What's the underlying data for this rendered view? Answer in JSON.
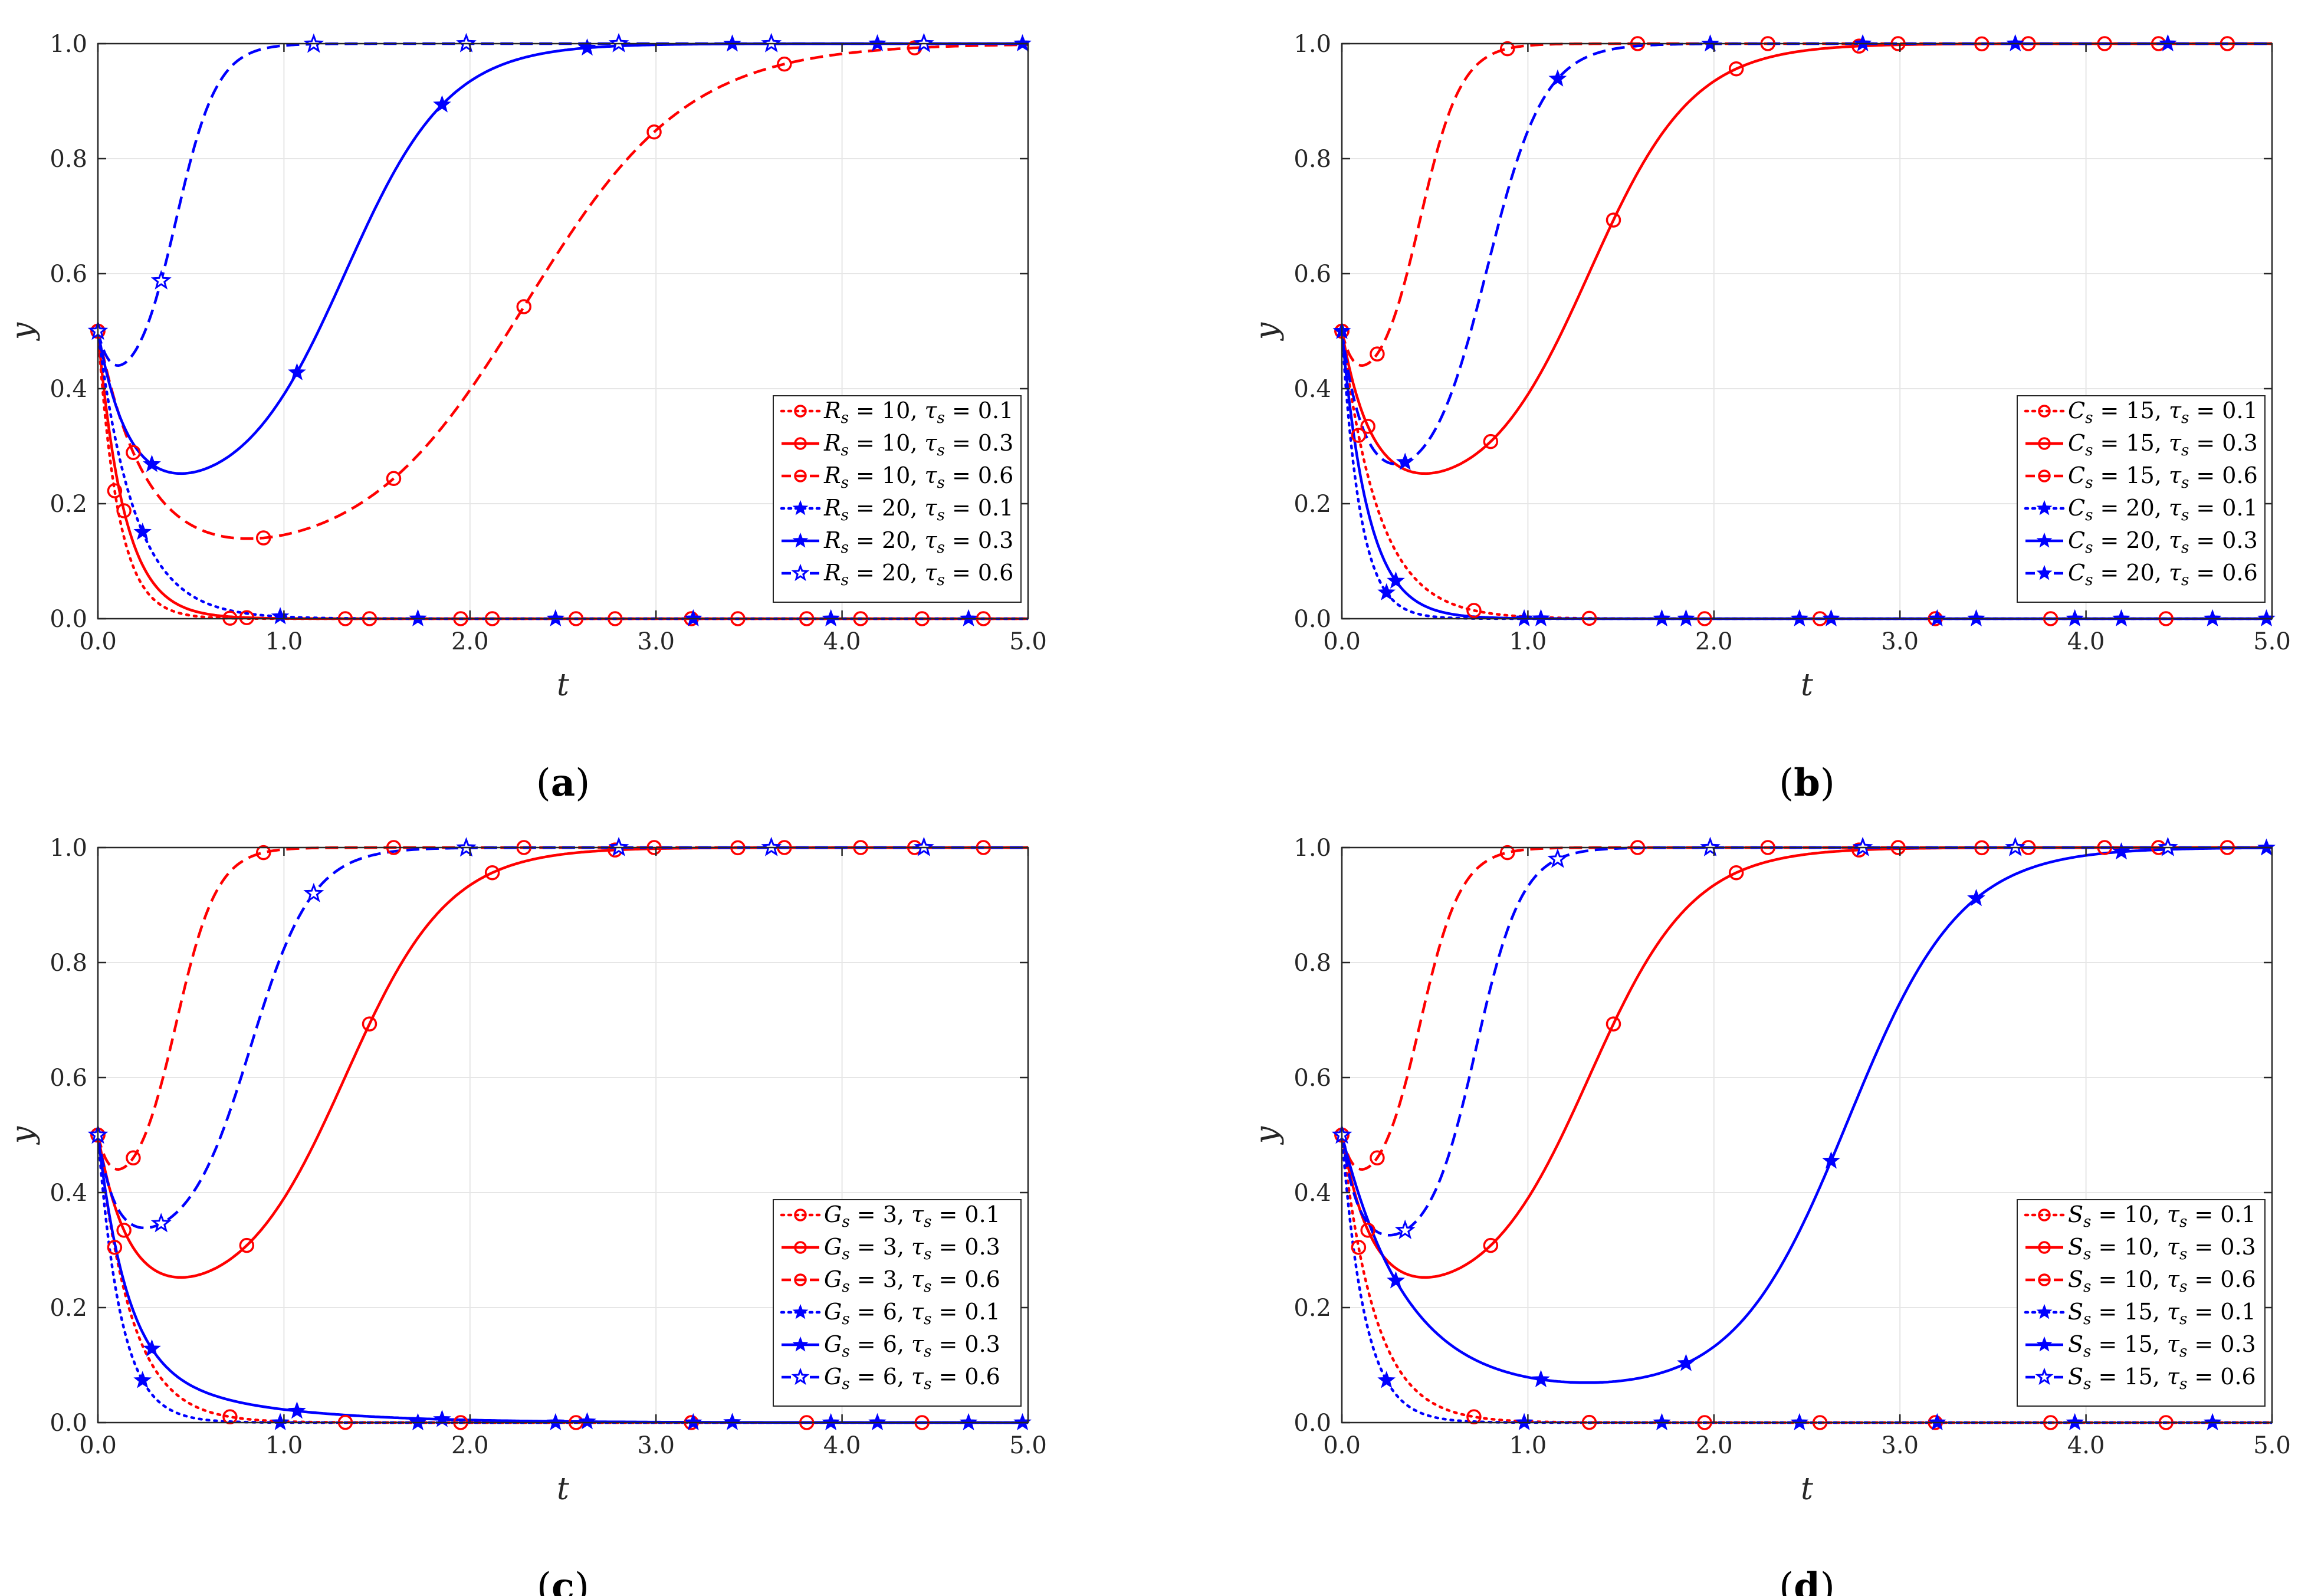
{
  "chart_data": [
    {
      "type": "line",
      "panel": "(a)",
      "panel_label": "(a)",
      "xlabel": "t",
      "ylabel": "y",
      "xlim": [
        0,
        5
      ],
      "ylim": [
        0,
        1
      ],
      "xticks": [
        "0.0",
        "1.0",
        "2.0",
        "3.0",
        "4.0",
        "5.0"
      ],
      "yticks": [
        "0.0",
        "0.2",
        "0.4",
        "0.6",
        "0.8",
        "1.0"
      ],
      "grid": true,
      "legend_position": "lower-right",
      "series": [
        {
          "name": "R_s = 10, τ_s = 0.1",
          "label_main": "R",
          "label_sub": "s",
          "label_value": "= 10, ",
          "label_tau": "τ",
          "label_tau_sub": "s",
          "label_tau_value": "= 0.1",
          "color": "#ff0000",
          "dash": "dotted",
          "marker": "circle",
          "y0": 0.5,
          "shape": "decay",
          "k": 9.0,
          "t_max": 5
        },
        {
          "name": "R_s = 10, τ_s = 0.3",
          "label_main": "R",
          "label_sub": "s",
          "label_value": "= 10, ",
          "label_tau": "τ",
          "label_tau_sub": "s",
          "label_tau_value": "= 0.3",
          "color": "#ff0000",
          "dash": "solid",
          "marker": "circle",
          "y0": 0.5,
          "shape": "decay",
          "k": 7.0,
          "t_max": 5
        },
        {
          "name": "R_s = 10, τ_s = 0.6",
          "label_main": "R",
          "label_sub": "s",
          "label_value": "= 10, ",
          "label_tau": "τ",
          "label_tau_sub": "s",
          "label_tau_value": "= 0.6",
          "color": "#ff0000",
          "dash": "dashed",
          "marker": "circle",
          "y0": 0.5,
          "shape": "dip",
          "min_t": 0.75,
          "min_y": 0.1,
          "mid": 2.3,
          "steep": 2.3,
          "t_max": 5
        },
        {
          "name": "R_s = 20, τ_s = 0.1",
          "label_main": "R",
          "label_sub": "s",
          "label_value": "= 20, ",
          "label_tau": "τ",
          "label_tau_sub": "s",
          "label_tau_value": "= 0.1",
          "color": "#0000ff",
          "dash": "dotted",
          "marker": "star",
          "y0": 0.5,
          "shape": "decay",
          "k": 5.0,
          "t_max": 5
        },
        {
          "name": "R_s = 20, τ_s = 0.3",
          "label_main": "R",
          "label_sub": "s",
          "label_value": "= 20, ",
          "label_tau": "τ",
          "label_tau_sub": "s",
          "label_tau_value": "= 0.3",
          "color": "#0000ff",
          "dash": "solid",
          "marker": "star",
          "y0": 0.5,
          "shape": "dip",
          "min_t": 0.48,
          "min_y": 0.21,
          "mid": 1.33,
          "steep": 3.6,
          "t_max": 5
        },
        {
          "name": "R_s = 20, τ_s = 0.6",
          "label_main": "R",
          "label_sub": "s",
          "label_value": "= 20, ",
          "label_tau": "τ",
          "label_tau_sub": "s",
          "label_tau_value": "= 0.6",
          "color": "#0000ff",
          "dash": "dashed",
          "marker": "star-open",
          "y0": 0.5,
          "shape": "dip",
          "min_t": 0.2,
          "min_y": 0.4,
          "mid": 0.42,
          "steep": 9.0,
          "t_max": 5
        }
      ]
    },
    {
      "type": "line",
      "panel": "(b)",
      "panel_label": "(b)",
      "xlabel": "t",
      "ylabel": "y",
      "xlim": [
        0,
        5
      ],
      "ylim": [
        0,
        1
      ],
      "xticks": [
        "0.0",
        "1.0",
        "2.0",
        "3.0",
        "4.0",
        "5.0"
      ],
      "yticks": [
        "0.0",
        "0.2",
        "0.4",
        "0.6",
        "0.8",
        "1.0"
      ],
      "grid": true,
      "legend_position": "lower-right",
      "series": [
        {
          "name": "C_s = 15, τ_s = 0.1",
          "label_main": "C",
          "label_sub": "s",
          "label_value": "= 15, ",
          "label_tau": "τ",
          "label_tau_sub": "s",
          "label_tau_value": "= 0.1",
          "color": "#ff0000",
          "dash": "dotted",
          "marker": "circle",
          "y0": 0.5,
          "shape": "decay",
          "k": 5.0,
          "t_max": 5
        },
        {
          "name": "C_s = 15, τ_s = 0.3",
          "label_main": "C",
          "label_sub": "s",
          "label_value": "= 15, ",
          "label_tau": "τ",
          "label_tau_sub": "s",
          "label_tau_value": "= 0.3",
          "color": "#ff0000",
          "dash": "solid",
          "marker": "circle",
          "y0": 0.5,
          "shape": "dip",
          "min_t": 0.48,
          "min_y": 0.21,
          "mid": 1.33,
          "steep": 3.6,
          "t_max": 5
        },
        {
          "name": "C_s = 15, τ_s = 0.6",
          "label_main": "C",
          "label_sub": "s",
          "label_value": "= 15, ",
          "label_tau": "τ",
          "label_tau_sub": "s",
          "label_tau_value": "= 0.6",
          "color": "#ff0000",
          "dash": "dashed",
          "marker": "circle",
          "y0": 0.5,
          "shape": "dip",
          "min_t": 0.2,
          "min_y": 0.4,
          "mid": 0.42,
          "steep": 9.0,
          "t_max": 5
        },
        {
          "name": "C_s = 20, τ_s = 0.1",
          "label_main": "C",
          "label_sub": "s",
          "label_value": "= 20, ",
          "label_tau": "τ",
          "label_tau_sub": "s",
          "label_tau_value": "= 0.1",
          "color": "#0000ff",
          "dash": "dotted",
          "marker": "star",
          "y0": 0.5,
          "shape": "decay",
          "k": 10.0,
          "t_max": 5
        },
        {
          "name": "C_s = 20, τ_s = 0.3",
          "label_main": "C",
          "label_sub": "s",
          "label_value": "= 20, ",
          "label_tau": "τ",
          "label_tau_sub": "s",
          "label_tau_value": "= 0.3",
          "color": "#0000ff",
          "dash": "solid",
          "marker": "star",
          "y0": 0.5,
          "shape": "decay",
          "k": 7.0,
          "t_max": 5
        },
        {
          "name": "C_s = 20, τ_s = 0.6",
          "label_main": "C",
          "label_sub": "s",
          "label_value": "= 20, ",
          "label_tau": "τ",
          "label_tau_sub": "s",
          "label_tau_value": "= 0.6",
          "color": "#0000ff",
          "dash": "dashed",
          "marker": "star",
          "y0": 0.5,
          "shape": "dip",
          "min_t": 0.35,
          "min_y": 0.22,
          "mid": 0.78,
          "steep": 6.5,
          "t_max": 5
        }
      ]
    },
    {
      "type": "line",
      "panel": "(c)",
      "panel_label": "(c)",
      "xlabel": "t",
      "ylabel": "y",
      "xlim": [
        0,
        5
      ],
      "ylim": [
        0,
        1
      ],
      "xticks": [
        "0.0",
        "1.0",
        "2.0",
        "3.0",
        "4.0",
        "5.0"
      ],
      "yticks": [
        "0.0",
        "0.2",
        "0.4",
        "0.6",
        "0.8",
        "1.0"
      ],
      "grid": true,
      "legend_position": "lower-right",
      "series": [
        {
          "name": "G_s = 3, τ_s = 0.1",
          "label_main": "G",
          "label_sub": "s",
          "label_value": "= 3, ",
          "label_tau": "τ",
          "label_tau_sub": "s",
          "label_tau_value": "= 0.1",
          "color": "#ff0000",
          "dash": "dotted",
          "marker": "circle",
          "y0": 0.5,
          "shape": "decay",
          "k": 5.5,
          "t_max": 5
        },
        {
          "name": "G_s = 3, τ_s = 0.3",
          "label_main": "G",
          "label_sub": "s",
          "label_value": "= 3, ",
          "label_tau": "τ",
          "label_tau_sub": "s",
          "label_tau_value": "= 0.3",
          "color": "#ff0000",
          "dash": "solid",
          "marker": "circle",
          "y0": 0.5,
          "shape": "dip",
          "min_t": 0.48,
          "min_y": 0.21,
          "mid": 1.33,
          "steep": 3.6,
          "t_max": 5
        },
        {
          "name": "G_s = 3, τ_s = 0.6",
          "label_main": "G",
          "label_sub": "s",
          "label_value": "= 3, ",
          "label_tau": "τ",
          "label_tau_sub": "s",
          "label_tau_value": "= 0.6",
          "color": "#ff0000",
          "dash": "dashed",
          "marker": "circle",
          "y0": 0.5,
          "shape": "dip",
          "min_t": 0.2,
          "min_y": 0.4,
          "mid": 0.42,
          "steep": 9.0,
          "t_max": 5
        },
        {
          "name": "G_s = 6, τ_s = 0.1",
          "label_main": "G",
          "label_sub": "s",
          "label_value": "= 6, ",
          "label_tau": "τ",
          "label_tau_sub": "s",
          "label_tau_value": "= 0.1",
          "color": "#0000ff",
          "dash": "dotted",
          "marker": "star",
          "y0": 0.5,
          "shape": "decay",
          "k": 8.0,
          "t_max": 5
        },
        {
          "name": "G_s = 6, τ_s = 0.3",
          "label_main": "G",
          "label_sub": "s",
          "label_value": "= 6, ",
          "label_tau": "τ",
          "label_tau_sub": "s",
          "label_tau_value": "= 0.3",
          "color": "#0000ff",
          "dash": "solid",
          "marker": "star",
          "y0": 0.5,
          "shape": "slowdecay",
          "t_max": 5
        },
        {
          "name": "G_s = 6, τ_s = 0.6",
          "label_main": "G",
          "label_sub": "s",
          "label_value": "= 6, ",
          "label_tau": "τ",
          "label_tau_sub": "s",
          "label_tau_value": "= 0.6",
          "color": "#0000ff",
          "dash": "dashed",
          "marker": "star-open",
          "y0": 0.5,
          "shape": "dip",
          "min_t": 0.27,
          "min_y": 0.31,
          "mid": 0.82,
          "steep": 6.0,
          "t_max": 5
        }
      ]
    },
    {
      "type": "line",
      "panel": "(d)",
      "panel_label": "(d)",
      "xlabel": "t",
      "ylabel": "y",
      "xlim": [
        0,
        5
      ],
      "ylim": [
        0,
        1
      ],
      "xticks": [
        "0.0",
        "1.0",
        "2.0",
        "3.0",
        "4.0",
        "5.0"
      ],
      "yticks": [
        "0.0",
        "0.2",
        "0.4",
        "0.6",
        "0.8",
        "1.0"
      ],
      "grid": true,
      "legend_position": "lower-right",
      "series": [
        {
          "name": "S_s = 10, τ_s = 0.1",
          "label_main": "S",
          "label_sub": "s",
          "label_value": "= 10, ",
          "label_tau": "τ",
          "label_tau_sub": "s",
          "label_tau_value": "= 0.1",
          "color": "#ff0000",
          "dash": "dotted",
          "marker": "circle",
          "y0": 0.5,
          "shape": "decay",
          "k": 5.5,
          "t_max": 5
        },
        {
          "name": "S_s = 10, τ_s = 0.3",
          "label_main": "S",
          "label_sub": "s",
          "label_value": "= 10, ",
          "label_tau": "τ",
          "label_tau_sub": "s",
          "label_tau_value": "= 0.3",
          "color": "#ff0000",
          "dash": "solid",
          "marker": "circle",
          "y0": 0.5,
          "shape": "dip",
          "min_t": 0.48,
          "min_y": 0.21,
          "mid": 1.33,
          "steep": 3.6,
          "t_max": 5
        },
        {
          "name": "S_s = 10, τ_s = 0.6",
          "label_main": "S",
          "label_sub": "s",
          "label_value": "= 10, ",
          "label_tau": "τ",
          "label_tau_sub": "s",
          "label_tau_value": "= 0.6",
          "color": "#ff0000",
          "dash": "dashed",
          "marker": "circle",
          "y0": 0.5,
          "shape": "dip",
          "min_t": 0.2,
          "min_y": 0.4,
          "mid": 0.42,
          "steep": 9.0,
          "t_max": 5
        },
        {
          "name": "S_s = 15, τ_s = 0.1",
          "label_main": "S",
          "label_sub": "s",
          "label_value": "= 15, ",
          "label_tau": "τ",
          "label_tau_sub": "s",
          "label_tau_value": "= 0.1",
          "color": "#0000ff",
          "dash": "dotted",
          "marker": "star",
          "y0": 0.5,
          "shape": "decay",
          "k": 8.0,
          "t_max": 5
        },
        {
          "name": "S_s = 15, τ_s = 0.3",
          "label_main": "S",
          "label_sub": "s",
          "label_value": "= 15, ",
          "label_tau": "τ",
          "label_tau_sub": "s",
          "label_tau_value": "= 0.3",
          "color": "#0000ff",
          "dash": "solid",
          "marker": "star",
          "y0": 0.5,
          "shape": "dip",
          "min_t": 1.05,
          "min_y": 0.05,
          "mid": 2.72,
          "steep": 3.3,
          "t_max": 5
        },
        {
          "name": "S_s = 15, τ_s = 0.6",
          "label_main": "S",
          "label_sub": "s",
          "label_value": "= 15, ",
          "label_tau": "τ",
          "label_tau_sub": "s",
          "label_tau_value": "= 0.6",
          "color": "#0000ff",
          "dash": "dashed",
          "marker": "star-open",
          "y0": 0.5,
          "shape": "dip",
          "min_t": 0.27,
          "min_y": 0.3,
          "mid": 0.72,
          "steep": 8.0,
          "t_max": 5
        }
      ]
    }
  ]
}
